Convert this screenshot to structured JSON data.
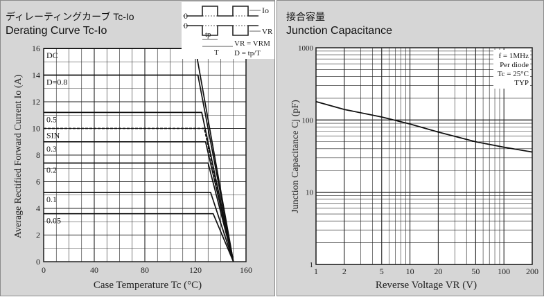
{
  "charts": [
    {
      "title_jp": "ディレーティングカーブ Tc-Io",
      "title_en": "Derating Curve Tc-Io"
    },
    {
      "title_jp": "接合容量",
      "title_en": "Junction Capacitance"
    }
  ],
  "inset": {
    "label_io": "Io",
    "label_vr": "VR",
    "label_vrvrm": "VR = VRM",
    "label_d": "D = tp/T",
    "label_tp": "tp",
    "label_t": "T",
    "zero_top": "0",
    "zero_bottom": "0"
  },
  "chart_data": [
    {
      "type": "line",
      "title": "Derating Curve Tc-Io",
      "xlabel": "Case Temperature  Tc (°C)",
      "ylabel": "Average Rectified Forward Current  Io (A)",
      "xlim": [
        0,
        160
      ],
      "ylim": [
        0,
        16
      ],
      "xticks": [
        0,
        40,
        80,
        120,
        160
      ],
      "yticks": [
        0,
        2,
        4,
        6,
        8,
        10,
        12,
        14,
        16
      ],
      "grid": true,
      "series": [
        {
          "name": "DC",
          "points": [
            [
              0,
              16
            ],
            [
              120,
              16
            ],
            [
              150,
              0
            ]
          ]
        },
        {
          "name": "D=0.8",
          "points": [
            [
              0,
              14
            ],
            [
              122,
              14
            ],
            [
              150,
              0
            ]
          ]
        },
        {
          "name": "0.5",
          "points": [
            [
              0,
              11.2
            ],
            [
              125,
              11.2
            ],
            [
              150,
              0
            ]
          ]
        },
        {
          "name": "SIN",
          "points": [
            [
              0,
              10
            ],
            [
              127,
              10
            ],
            [
              150,
              0
            ]
          ],
          "dashed": true
        },
        {
          "name": "0.3",
          "points": [
            [
              0,
              9
            ],
            [
              128,
              9
            ],
            [
              150,
              0
            ]
          ]
        },
        {
          "name": "0.2",
          "points": [
            [
              0,
              7.4
            ],
            [
              130,
              7.4
            ],
            [
              150,
              0
            ]
          ]
        },
        {
          "name": "0.1",
          "points": [
            [
              0,
              5.2
            ],
            [
              132,
              5.2
            ],
            [
              150,
              0
            ]
          ]
        },
        {
          "name": "0.05",
          "points": [
            [
              0,
              3.6
            ],
            [
              134,
              3.6
            ],
            [
              150,
              0
            ]
          ]
        }
      ]
    },
    {
      "type": "line",
      "title": "Junction Capacitance",
      "xlabel": "Reverse Voltage  VR (V)",
      "ylabel": "Junction Capacitance  Cj (pF)",
      "xscale": "log",
      "yscale": "log",
      "xlim": [
        1,
        200
      ],
      "ylim": [
        1,
        1000
      ],
      "xticks": [
        1,
        2,
        5,
        10,
        20,
        50,
        100,
        200
      ],
      "yticks": [
        1,
        10,
        100,
        1000
      ],
      "grid": true,
      "annotations": [
        "f = 1MHz",
        "Per diode",
        "Tc = 25°C",
        "TYP"
      ],
      "series": [
        {
          "name": "TYP",
          "x": [
            1,
            2,
            5,
            10,
            20,
            50,
            100,
            200
          ],
          "y": [
            180,
            140,
            110,
            88,
            68,
            50,
            42,
            36
          ]
        }
      ]
    }
  ]
}
